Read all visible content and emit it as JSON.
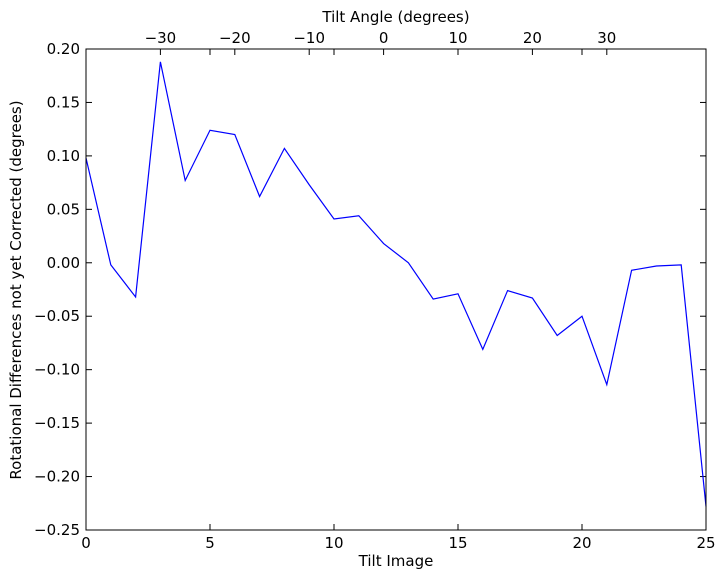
{
  "chart_data": {
    "type": "line",
    "title": "",
    "xlabel": "Tilt Image",
    "ylabel": "Rotational Differences not yet Corrected (degrees)",
    "secondary_xlabel": "Tilt Angle (degrees)",
    "xlim": [
      0,
      25
    ],
    "ylim": [
      -0.25,
      0.2
    ],
    "x_ticks": [
      0,
      5,
      10,
      15,
      20,
      25
    ],
    "x_tick_labels": [
      "0",
      "5",
      "10",
      "15",
      "20",
      "25"
    ],
    "y_ticks": [
      0.2,
      0.15,
      0.1,
      0.05,
      0.0,
      -0.05,
      -0.1,
      -0.15,
      -0.2,
      -0.25
    ],
    "y_tick_labels": [
      "0.20",
      "0.15",
      "0.10",
      "0.05",
      "0.00",
      "−0.05",
      "−0.10",
      "−0.15",
      "−0.20",
      "−0.25"
    ],
    "secondary_x_ticks": [
      -30,
      -20,
      -10,
      0,
      10,
      20,
      30
    ],
    "secondary_x_tick_labels": [
      "−30",
      "−20",
      "−10",
      "0",
      "10",
      "20",
      "30"
    ],
    "secondary_x_ticks_in_tilt_image_units": [
      3,
      6,
      9,
      12,
      15,
      18,
      21
    ],
    "grid": false,
    "line_color": "#0000ff",
    "series": [
      {
        "x": [
          0,
          1,
          2,
          3,
          4,
          5,
          6,
          7,
          8,
          9,
          10,
          11,
          12,
          13,
          14,
          15,
          16,
          17,
          18,
          19,
          20,
          21,
          22,
          23,
          24,
          25
        ],
        "y": [
          0.098,
          -0.002,
          -0.032,
          0.188,
          0.077,
          0.124,
          0.12,
          0.062,
          0.107,
          0.073,
          0.041,
          0.044,
          0.018,
          0.0,
          -0.034,
          -0.029,
          -0.081,
          -0.026,
          -0.033,
          -0.068,
          -0.05,
          -0.114,
          -0.007,
          -0.003,
          -0.002,
          -0.228
        ]
      }
    ]
  }
}
